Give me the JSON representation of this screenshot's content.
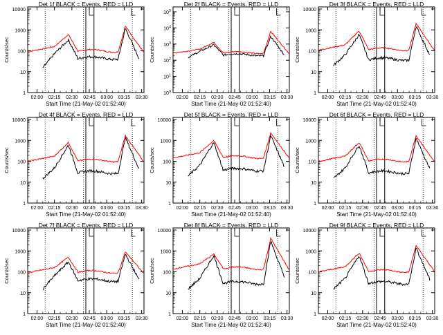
{
  "figure": {
    "colors": {
      "events": "#000000",
      "lld": "#ff0000",
      "axis": "#000000",
      "background": "#ffffff"
    }
  },
  "chart_data": [
    {
      "type": "line",
      "title": "Det 1f BLACK = Events, RED = LLD",
      "xlabel": "Start Time (21-May-02 01:52:40)",
      "ylabel": "Counts/sec",
      "xticks": [
        "02:00",
        "02:15",
        "02:30",
        "02:45",
        "03:00",
        "03:15",
        "03:30"
      ],
      "yticks": [
        "1",
        "10",
        "100",
        "1000",
        "10000"
      ],
      "ylog": true,
      "ylim_exp": [
        0,
        4.1
      ],
      "series": [
        {
          "color": "#ff0000",
          "peak1": 600,
          "peak2": 1500,
          "base": 100,
          "tail": 80
        },
        {
          "color": "#000000",
          "peak1": 330,
          "peak2": 1200,
          "base": 45,
          "start": 15,
          "tail": 40
        }
      ]
    },
    {
      "type": "line",
      "title": "Det 2f BLACK = Events, RED = LLD",
      "xlabel": "Start Time (21-May-02 01:52:40)",
      "ylabel": "Counts/sec",
      "xticks": [
        "02:00",
        "02:15",
        "02:30",
        "02:45",
        "03:00",
        "03:15",
        "03:30"
      ],
      "yticks": [
        "10^0",
        "10^1",
        "10^2",
        "10^3",
        "10^4",
        "10^5"
      ],
      "ylog": true,
      "ylim_exp": [
        0,
        5.3
      ],
      "series": [
        {
          "color": "#ff0000",
          "peak1": 1300,
          "peak2": 6000,
          "base": 300,
          "tail": 250
        },
        {
          "color": "#000000",
          "peak1": 900,
          "peak2": 3000,
          "base": 220,
          "start": 150,
          "tail": 200
        }
      ]
    },
    {
      "type": "line",
      "title": "Det 3f BLACK = Events, RED = LLD",
      "xlabel": "Start Time (21-May-02 01:52:40)",
      "ylabel": "Counts/sec",
      "xticks": [
        "02:00",
        "02:15",
        "02:30",
        "02:45",
        "03:00",
        "03:15",
        "03:30"
      ],
      "yticks": [
        "1",
        "10",
        "100",
        "1000",
        "10000"
      ],
      "ylog": true,
      "ylim_exp": [
        0,
        4.1
      ],
      "series": [
        {
          "color": "#ff0000",
          "peak1": 900,
          "peak2": 2000,
          "base": 120,
          "tail": 100
        },
        {
          "color": "#000000",
          "peak1": 600,
          "peak2": 1500,
          "base": 40,
          "start": 20,
          "tail": 60
        }
      ]
    },
    {
      "type": "line",
      "title": "Det 4f BLACK = Events, RED = LLD",
      "xlabel": "Start Time (21-May-02 01:52:40)",
      "ylabel": "Counts/sec",
      "xticks": [
        "02:00",
        "02:15",
        "02:30",
        "02:45",
        "03:00",
        "03:15",
        "03:30"
      ],
      "yticks": [
        "1",
        "10",
        "100",
        "1000",
        "10000"
      ],
      "ylog": true,
      "ylim_exp": [
        0,
        4.1
      ],
      "series": [
        {
          "color": "#ff0000",
          "peak1": 800,
          "peak2": 1700,
          "base": 110,
          "tail": 90
        },
        {
          "color": "#000000",
          "peak1": 600,
          "peak2": 1400,
          "base": 30,
          "start": 15,
          "tail": 40
        }
      ]
    },
    {
      "type": "line",
      "title": "Det 5f BLACK = Events, RED = LLD",
      "xlabel": "Start Time (21-May-02 01:52:40)",
      "ylabel": "Counts/sec",
      "xticks": [
        "02:00",
        "02:15",
        "02:30",
        "02:45",
        "03:00",
        "03:15",
        "03:30"
      ],
      "yticks": [
        "1",
        "10",
        "100",
        "1000",
        "10000"
      ],
      "ylog": true,
      "ylim_exp": [
        0,
        4.1
      ],
      "series": [
        {
          "color": "#ff0000",
          "peak1": 1000,
          "peak2": 2300,
          "base": 160,
          "tail": 140
        },
        {
          "color": "#000000",
          "peak1": 800,
          "peak2": 1700,
          "base": 40,
          "start": 20,
          "tail": 50
        }
      ]
    },
    {
      "type": "line",
      "title": "Det 6f BLACK = Events, RED = LLD",
      "xlabel": "Start Time (21-May-02 01:52:40)",
      "ylabel": "Counts/sec",
      "xticks": [
        "02:00",
        "02:15",
        "02:30",
        "02:45",
        "03:00",
        "03:15",
        "03:30"
      ],
      "yticks": [
        "1",
        "10",
        "100",
        "1000",
        "10000"
      ],
      "ylog": true,
      "ylim_exp": [
        0,
        4.1
      ],
      "series": [
        {
          "color": "#ff0000",
          "peak1": 800,
          "peak2": 1700,
          "base": 110,
          "tail": 90
        },
        {
          "color": "#000000",
          "peak1": 600,
          "peak2": 1300,
          "base": 30,
          "start": 15,
          "tail": 40
        }
      ]
    },
    {
      "type": "line",
      "title": "Det 7f BLACK = Events, RED = LLD",
      "xlabel": "Start Time (21-May-02 01:52:40)",
      "ylabel": "Counts/sec",
      "xticks": [
        "02:00",
        "02:15",
        "02:30",
        "02:45",
        "03:00",
        "03:15",
        "03:30"
      ],
      "yticks": [
        "1",
        "10",
        "100",
        "1000",
        "10000"
      ],
      "ylog": true,
      "ylim_exp": [
        0,
        4.1
      ],
      "series": [
        {
          "color": "#ff0000",
          "peak1": 500,
          "peak2": 900,
          "base": 100,
          "tail": 80
        },
        {
          "color": "#000000",
          "peak1": 300,
          "peak2": 700,
          "base": 40,
          "start": 15,
          "tail": 40
        }
      ]
    },
    {
      "type": "line",
      "title": "Det 8f BLACK = Events, RED = LLD",
      "xlabel": "Start Time (21-May-02 01:52:40)",
      "ylabel": "Counts/sec",
      "xticks": [
        "02:00",
        "02:15",
        "02:30",
        "02:45",
        "03:00",
        "03:15",
        "03:30"
      ],
      "yticks": [
        "1",
        "10",
        "100",
        "1000",
        "10000"
      ],
      "ylog": true,
      "ylim_exp": [
        0,
        4.1
      ],
      "series": [
        {
          "color": "#ff0000",
          "peak1": 700,
          "peak2": 4000,
          "base": 150,
          "tail": 120
        },
        {
          "color": "#000000",
          "peak1": 600,
          "peak2": 3000,
          "base": 30,
          "start": 15,
          "tail": 50
        }
      ]
    },
    {
      "type": "line",
      "title": "Det 9f BLACK = Events, RED = LLD",
      "xlabel": "Start Time (21-May-02 01:52:40)",
      "ylabel": "Counts/sec",
      "xticks": [
        "02:00",
        "02:15",
        "02:30",
        "02:45",
        "03:00",
        "03:15",
        "03:30"
      ],
      "yticks": [
        "1",
        "10",
        "100",
        "1000",
        "10000"
      ],
      "ylog": true,
      "ylim_exp": [
        0,
        4.1
      ],
      "series": [
        {
          "color": "#ff0000",
          "peak1": 800,
          "peak2": 1800,
          "base": 110,
          "tail": 100
        },
        {
          "color": "#000000",
          "peak1": 600,
          "peak2": 1400,
          "base": 30,
          "start": 15,
          "tail": 40
        }
      ]
    }
  ]
}
